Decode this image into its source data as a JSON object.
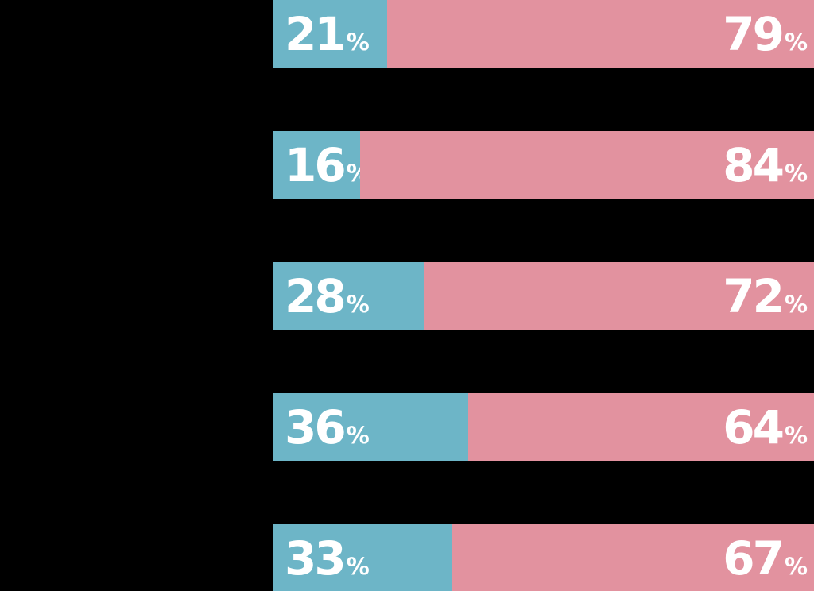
{
  "page": {
    "background_color": "#000000",
    "text_color": "#ffffff"
  },
  "chart_data": {
    "type": "bar",
    "variant": "horizontal-stacked",
    "title": "",
    "xlabel": "",
    "ylabel": "",
    "xlim": [
      0,
      100
    ],
    "grid": false,
    "legend": "none",
    "categories": [
      "",
      "",
      "",
      "",
      ""
    ],
    "series": [
      {
        "name": "left-segment",
        "color": "#6db5c7",
        "values": [
          21,
          16,
          28,
          36,
          33
        ]
      },
      {
        "name": "right-segment",
        "color": "#e2929f",
        "values": [
          79,
          84,
          72,
          64,
          67
        ]
      }
    ],
    "value_suffix": "%",
    "value_label_color": "#ffffff"
  }
}
